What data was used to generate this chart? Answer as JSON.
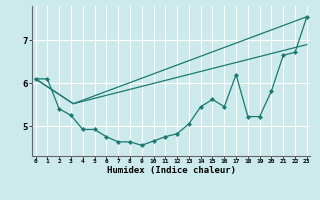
{
  "xlabel": "Humidex (Indice chaleur)",
  "bg_color": "#cce9ec",
  "grid_color": "#ffffff",
  "line_color": "#1a7a6e",
  "x_ticks": [
    0,
    1,
    2,
    3,
    4,
    5,
    6,
    7,
    8,
    9,
    10,
    11,
    12,
    13,
    14,
    15,
    16,
    17,
    18,
    19,
    20,
    21,
    22,
    23
  ],
  "y_ticks": [
    5,
    6,
    7
  ],
  "xlim": [
    -0.3,
    23.3
  ],
  "ylim": [
    4.3,
    7.8
  ],
  "line1_x": [
    0,
    1,
    2,
    3,
    4,
    5,
    6,
    7,
    8,
    9,
    10,
    11,
    12,
    13,
    14,
    15,
    16,
    17,
    18,
    19,
    20,
    21,
    22,
    23
  ],
  "line1_y": [
    6.1,
    6.1,
    5.4,
    5.25,
    4.92,
    4.92,
    4.75,
    4.63,
    4.63,
    4.55,
    4.65,
    4.75,
    4.82,
    5.05,
    5.45,
    5.62,
    5.45,
    6.2,
    5.22,
    5.22,
    5.82,
    6.65,
    6.72,
    7.55
  ],
  "line2_x": [
    0,
    3.2,
    23
  ],
  "line2_y": [
    6.1,
    5.52,
    7.55
  ],
  "line3_x": [
    0,
    3.2,
    23
  ],
  "line3_y": [
    6.1,
    5.52,
    6.9
  ]
}
